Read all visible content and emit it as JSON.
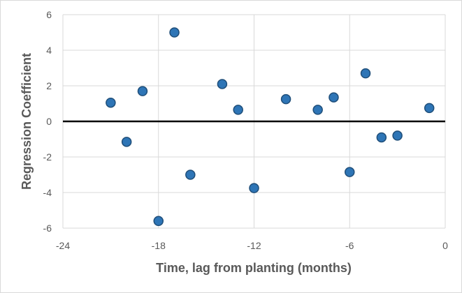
{
  "chart_data": {
    "type": "scatter",
    "title": "",
    "xlabel": "Time, lag from planting (months)",
    "ylabel": "Regression Coefficient",
    "xlim": [
      -24,
      0
    ],
    "ylim": [
      -6,
      6
    ],
    "x_ticks": [
      -24,
      -18,
      -12,
      -6,
      0
    ],
    "y_ticks": [
      -6,
      -4,
      -2,
      0,
      2,
      4,
      6
    ],
    "grid": true,
    "zero_line": true,
    "series": [
      {
        "color": "#1f4e79",
        "fill": "#2e75b6",
        "points": [
          {
            "x": -21,
            "y": 1.05
          },
          {
            "x": -20,
            "y": -1.15
          },
          {
            "x": -19,
            "y": 1.7
          },
          {
            "x": -18,
            "y": -5.6
          },
          {
            "x": -17,
            "y": 5.0
          },
          {
            "x": -16,
            "y": -3.0
          },
          {
            "x": -14,
            "y": 2.1
          },
          {
            "x": -13,
            "y": 0.65
          },
          {
            "x": -12,
            "y": -3.75
          },
          {
            "x": -10,
            "y": 1.25
          },
          {
            "x": -8,
            "y": 0.65
          },
          {
            "x": -7,
            "y": 1.35
          },
          {
            "x": -6,
            "y": -2.85
          },
          {
            "x": -5,
            "y": 2.7
          },
          {
            "x": -4,
            "y": -0.9
          },
          {
            "x": -3,
            "y": -0.8
          },
          {
            "x": -1,
            "y": 0.75
          }
        ]
      }
    ]
  }
}
